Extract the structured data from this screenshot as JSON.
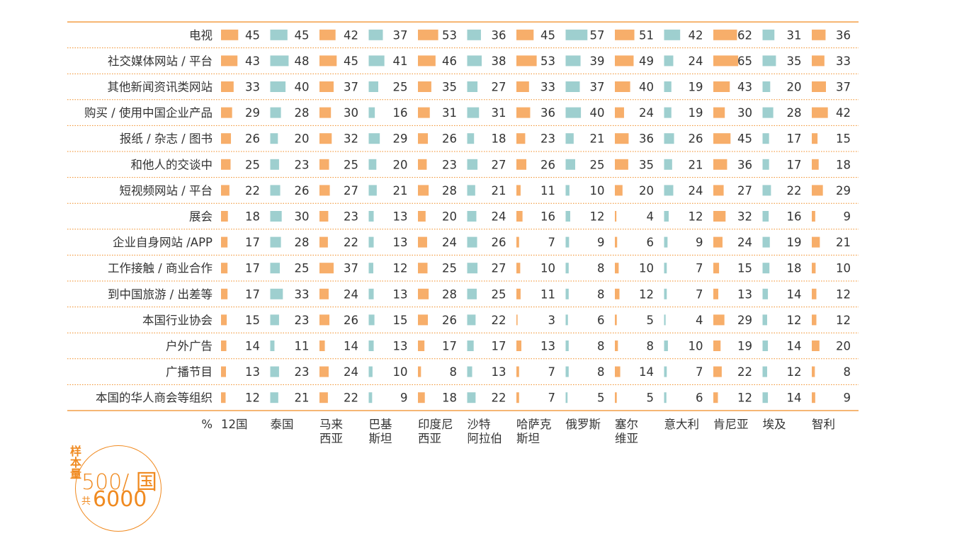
{
  "colors": {
    "orange": "#F7AE6A",
    "teal": "#9ECFCF",
    "accent": "#F08A20",
    "text": "#333333"
  },
  "chart_data": {
    "type": "bar",
    "unit_label": "%",
    "columns": [
      {
        "line1": "12国",
        "line2": "",
        "color": "orange"
      },
      {
        "line1": "泰国",
        "line2": "",
        "color": "teal"
      },
      {
        "line1": "马来",
        "line2": "西亚",
        "color": "orange"
      },
      {
        "line1": "巴基",
        "line2": "斯坦",
        "color": "teal"
      },
      {
        "line1": "印度尼",
        "line2": "西亚",
        "color": "orange"
      },
      {
        "line1": "沙特",
        "line2": "阿拉伯",
        "color": "teal"
      },
      {
        "line1": "哈萨克",
        "line2": "斯坦",
        "color": "orange"
      },
      {
        "line1": "俄罗斯",
        "line2": "",
        "color": "teal"
      },
      {
        "line1": "塞尔",
        "line2": "维亚",
        "color": "orange"
      },
      {
        "line1": "意大利",
        "line2": "",
        "color": "teal"
      },
      {
        "line1": "肯尼亚",
        "line2": "",
        "color": "orange"
      },
      {
        "line1": "埃及",
        "line2": "",
        "color": "teal"
      },
      {
        "line1": "智利",
        "line2": "",
        "color": "orange"
      }
    ],
    "rows": [
      {
        "label": "电视",
        "values": [
          45,
          45,
          42,
          37,
          53,
          36,
          45,
          57,
          51,
          42,
          62,
          31,
          36
        ]
      },
      {
        "label": "社交媒体网站 / 平台",
        "values": [
          43,
          48,
          45,
          41,
          46,
          38,
          53,
          39,
          49,
          24,
          65,
          35,
          33
        ]
      },
      {
        "label": "其他新闻资讯类网站",
        "values": [
          33,
          40,
          37,
          25,
          35,
          27,
          33,
          37,
          40,
          19,
          43,
          20,
          37
        ]
      },
      {
        "label": "购买 / 使用中国企业产品",
        "values": [
          29,
          28,
          30,
          16,
          31,
          31,
          36,
          40,
          24,
          19,
          30,
          28,
          42
        ]
      },
      {
        "label": "报纸 / 杂志 / 图书",
        "values": [
          26,
          20,
          32,
          29,
          26,
          18,
          23,
          21,
          36,
          26,
          45,
          17,
          15
        ]
      },
      {
        "label": "和他人的交谈中",
        "values": [
          25,
          23,
          25,
          20,
          23,
          27,
          26,
          25,
          35,
          21,
          36,
          17,
          18
        ]
      },
      {
        "label": "短视频网站 / 平台",
        "values": [
          22,
          26,
          27,
          21,
          28,
          21,
          11,
          10,
          20,
          24,
          27,
          22,
          29
        ]
      },
      {
        "label": "展会",
        "values": [
          18,
          30,
          23,
          13,
          20,
          24,
          16,
          12,
          4,
          12,
          32,
          16,
          9
        ]
      },
      {
        "label": "企业自身网站 /APP",
        "values": [
          17,
          28,
          22,
          13,
          24,
          26,
          7,
          9,
          6,
          9,
          24,
          19,
          21
        ]
      },
      {
        "label": "工作接触 / 商业合作",
        "values": [
          17,
          25,
          37,
          12,
          25,
          27,
          10,
          8,
          10,
          7,
          15,
          18,
          10
        ]
      },
      {
        "label": "到中国旅游 / 出差等",
        "values": [
          17,
          33,
          24,
          13,
          28,
          25,
          11,
          8,
          12,
          7,
          13,
          14,
          12
        ]
      },
      {
        "label": "本国行业协会",
        "values": [
          15,
          23,
          26,
          15,
          26,
          22,
          3,
          6,
          5,
          4,
          29,
          12,
          12
        ]
      },
      {
        "label": "户外广告",
        "values": [
          14,
          11,
          14,
          13,
          17,
          17,
          13,
          8,
          8,
          10,
          19,
          14,
          20
        ]
      },
      {
        "label": "广播节目",
        "values": [
          13,
          23,
          24,
          10,
          8,
          13,
          7,
          8,
          14,
          7,
          22,
          12,
          8
        ]
      },
      {
        "label": "本国的华人商会等组织",
        "values": [
          12,
          21,
          22,
          9,
          18,
          22,
          7,
          5,
          5,
          6,
          12,
          14,
          9
        ]
      }
    ]
  },
  "sample_badge": {
    "title": "样本量",
    "main": "500/ 国",
    "prefix": "共",
    "total": "6000"
  }
}
